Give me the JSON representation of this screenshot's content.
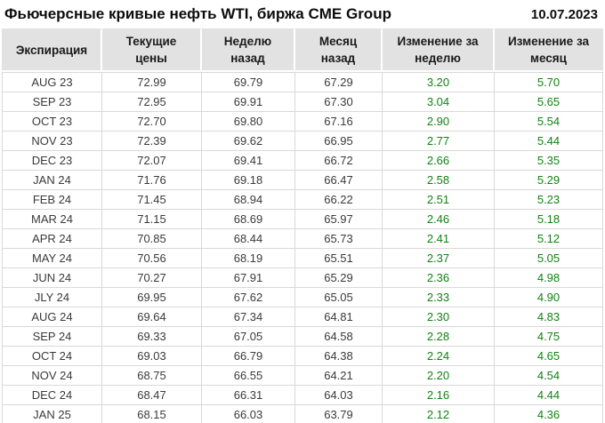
{
  "header": {
    "title": "Фьючерсные кривые нефть WTI, биржа CME Group",
    "date": "10.07.2023"
  },
  "table": {
    "header_labels": [
      "Экспирация",
      "Текущие\nцены",
      "Неделю\nназад",
      "Месяц\nназад",
      "Изменение за\nнеделю",
      "Изменение за\nмесяц"
    ]
  },
  "colors": {
    "positive_change": "#128212",
    "header_bg": "#e2e2e2",
    "grid_border": "#d9d9d9",
    "text": "#3a3a3a"
  },
  "chart_data": {
    "type": "table",
    "title": "Фьючерсные кривые нефть WTI, биржа CME Group",
    "date": "10.07.2023",
    "columns": [
      "Экспирация",
      "Текущие цены",
      "Неделю назад",
      "Месяц назад",
      "Изменение за неделю",
      "Изменение за месяц"
    ],
    "rows": [
      [
        "AUG 23",
        "72.99",
        "69.79",
        "67.29",
        "3.20",
        "5.70"
      ],
      [
        "SEP 23",
        "72.95",
        "69.91",
        "67.30",
        "3.04",
        "5.65"
      ],
      [
        "OCT 23",
        "72.70",
        "69.80",
        "67.16",
        "2.90",
        "5.54"
      ],
      [
        "NOV 23",
        "72.39",
        "69.62",
        "66.95",
        "2.77",
        "5.44"
      ],
      [
        "DEC 23",
        "72.07",
        "69.41",
        "66.72",
        "2.66",
        "5.35"
      ],
      [
        "JAN 24",
        "71.76",
        "69.18",
        "66.47",
        "2.58",
        "5.29"
      ],
      [
        "FEB 24",
        "71.45",
        "68.94",
        "66.22",
        "2.51",
        "5.23"
      ],
      [
        "MAR 24",
        "71.15",
        "68.69",
        "65.97",
        "2.46",
        "5.18"
      ],
      [
        "APR 24",
        "70.85",
        "68.44",
        "65.73",
        "2.41",
        "5.12"
      ],
      [
        "MAY 24",
        "70.56",
        "68.19",
        "65.51",
        "2.37",
        "5.05"
      ],
      [
        "JUN 24",
        "70.27",
        "67.91",
        "65.29",
        "2.36",
        "4.98"
      ],
      [
        "JLY 24",
        "69.95",
        "67.62",
        "65.05",
        "2.33",
        "4.90"
      ],
      [
        "AUG 24",
        "69.64",
        "67.34",
        "64.81",
        "2.30",
        "4.83"
      ],
      [
        "SEP 24",
        "69.33",
        "67.05",
        "64.58",
        "2.28",
        "4.75"
      ],
      [
        "OCT 24",
        "69.03",
        "66.79",
        "64.38",
        "2.24",
        "4.65"
      ],
      [
        "NOV 24",
        "68.75",
        "66.55",
        "64.21",
        "2.20",
        "4.54"
      ],
      [
        "DEC 24",
        "68.47",
        "66.31",
        "64.03",
        "2.16",
        "4.44"
      ],
      [
        "JAN 25",
        "68.15",
        "66.03",
        "63.79",
        "2.12",
        "4.36"
      ]
    ]
  }
}
